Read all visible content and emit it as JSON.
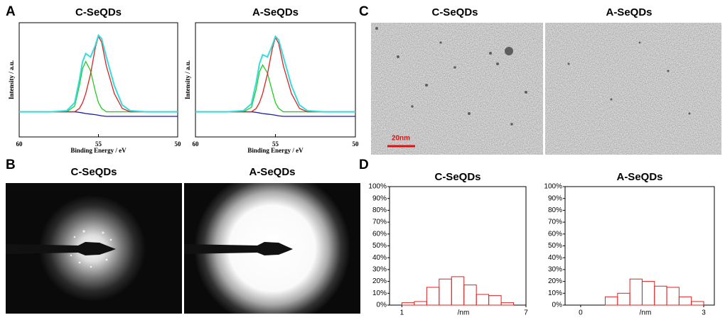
{
  "panel_labels": [
    "A",
    "B",
    "C",
    "D"
  ],
  "saed_titles": [
    "C-SeQDs",
    "A-SeQDs"
  ],
  "tem_titles": [
    "C-SeQDs",
    "A-SeQDs"
  ],
  "scale_bar": "20nm",
  "chart_data": [
    {
      "type": "line",
      "title": "C-SeQDs",
      "x_label": "Binding Energy / eV",
      "y_label": "Intensity / a.u.",
      "x": [
        60,
        59,
        58,
        57,
        56.5,
        56.2,
        56,
        55.8,
        55.5,
        55.2,
        55,
        54.8,
        54.5,
        54,
        53.5,
        53,
        52,
        51,
        50
      ],
      "xlim": [
        60,
        50
      ],
      "xticks": [
        60,
        55,
        50
      ],
      "ylim": [
        0,
        100
      ],
      "series": [
        {
          "color": "#1c1ca8",
          "values": [
            22,
            22,
            22,
            22,
            22,
            21.5,
            21,
            20.5,
            20,
            19.5,
            19,
            18.5,
            18,
            18,
            18,
            18,
            18,
            18,
            18
          ]
        },
        {
          "color": "#22cc22",
          "values": [
            22,
            22,
            22,
            22,
            27,
            45,
            60,
            66,
            58,
            40,
            30,
            25,
            22,
            22,
            22,
            22,
            22,
            22,
            22
          ]
        },
        {
          "color": "#dd2222",
          "values": [
            22,
            22,
            22,
            22,
            22,
            25,
            30,
            38,
            55,
            78,
            88,
            83,
            62,
            38,
            25,
            22,
            22,
            22,
            22
          ]
        },
        {
          "color": "#33dddd",
          "values": [
            22,
            22,
            22,
            23,
            30,
            50,
            66,
            73,
            70,
            80,
            89,
            86,
            70,
            45,
            28,
            23,
            22,
            22,
            22
          ]
        }
      ]
    },
    {
      "type": "line",
      "title": "A-SeQDs",
      "x_label": "Binding Energy / eV",
      "y_label": "Intensity / a.u.",
      "x": [
        60,
        59,
        58,
        57,
        56.5,
        56.2,
        56,
        55.8,
        55.5,
        55.2,
        55,
        54.8,
        54.5,
        54,
        53.5,
        53,
        52,
        51,
        50
      ],
      "xlim": [
        60,
        50
      ],
      "xticks": [
        60,
        55,
        50
      ],
      "ylim": [
        0,
        100
      ],
      "series": [
        {
          "color": "#1c1ca8",
          "values": [
            22,
            22,
            22,
            22,
            22,
            21.5,
            21,
            20.5,
            20,
            19.5,
            19,
            18.5,
            18,
            18,
            18,
            18,
            18,
            18,
            18
          ]
        },
        {
          "color": "#22cc22",
          "values": [
            22,
            22,
            22,
            22,
            26,
            42,
            57,
            63,
            56,
            40,
            30,
            25,
            22,
            22,
            22,
            22,
            22,
            22,
            22
          ]
        },
        {
          "color": "#dd2222",
          "values": [
            22,
            22,
            22,
            22,
            22,
            25,
            30,
            38,
            55,
            77,
            87,
            82,
            62,
            38,
            25,
            22,
            22,
            22,
            22
          ]
        },
        {
          "color": "#33dddd",
          "values": [
            22,
            22,
            22,
            23,
            29,
            48,
            64,
            72,
            70,
            80,
            88,
            85,
            70,
            45,
            28,
            23,
            22,
            22,
            22
          ]
        }
      ]
    },
    {
      "type": "histogram",
      "title": "C-SeQDs",
      "x_label": "/nm",
      "color": "#dd2222",
      "bins": [
        1,
        1.6,
        2.2,
        2.8,
        3.4,
        4.0,
        4.6,
        5.2,
        5.8,
        6.4
      ],
      "values": [
        2,
        3,
        15,
        22,
        24,
        17,
        9,
        8,
        2
      ],
      "xlim": [
        0.4,
        7
      ],
      "xticks": [
        1,
        7
      ],
      "ylim": [
        0,
        100
      ],
      "yticks": [
        {
          "value": 0,
          "label": "0%"
        },
        {
          "value": 10,
          "label": "10%"
        },
        {
          "value": 20,
          "label": "20%"
        },
        {
          "value": 30,
          "label": "30%"
        },
        {
          "value": 40,
          "label": "40%"
        },
        {
          "value": 50,
          "label": "50%"
        },
        {
          "value": 60,
          "label": "60%"
        },
        {
          "value": 70,
          "label": "70%"
        },
        {
          "value": 80,
          "label": "80%"
        },
        {
          "value": 90,
          "label": "90%"
        },
        {
          "value": 100,
          "label": "100%"
        }
      ]
    },
    {
      "type": "histogram",
      "title": "A-SeQDs",
      "x_label": "/nm",
      "color": "#dd2222",
      "bins": [
        0.6,
        0.9,
        1.2,
        1.5,
        1.8,
        2.1,
        2.4,
        2.7,
        3.0
      ],
      "values": [
        7,
        10,
        22,
        20,
        16,
        15,
        7,
        3
      ],
      "xlim": [
        -0.38,
        3.26
      ],
      "xticks": [
        0,
        3
      ],
      "ylim": [
        0,
        100
      ],
      "yticks": [
        {
          "value": 0,
          "label": "0%"
        },
        {
          "value": 10,
          "label": "10%"
        },
        {
          "value": 20,
          "label": "20%"
        },
        {
          "value": 30,
          "label": "30%"
        },
        {
          "value": 40,
          "label": "40%"
        },
        {
          "value": 50,
          "label": "50%"
        },
        {
          "value": 60,
          "label": "60%"
        },
        {
          "value": 70,
          "label": "70%"
        },
        {
          "value": 80,
          "label": "80%"
        },
        {
          "value": 90,
          "label": "90%"
        },
        {
          "value": 100,
          "label": "100%"
        }
      ]
    }
  ]
}
